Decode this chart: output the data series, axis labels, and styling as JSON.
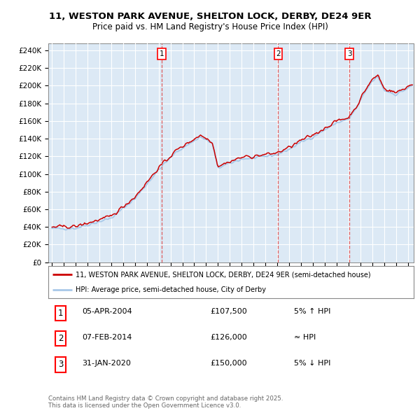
{
  "title_line1": "11, WESTON PARK AVENUE, SHELTON LOCK, DERBY, DE24 9ER",
  "title_line2": "Price paid vs. HM Land Registry's House Price Index (HPI)",
  "ylabel_ticks": [
    "£0",
    "£20K",
    "£40K",
    "£60K",
    "£80K",
    "£100K",
    "£120K",
    "£140K",
    "£160K",
    "£180K",
    "£200K",
    "£220K",
    "£240K"
  ],
  "ytick_values": [
    0,
    20000,
    40000,
    60000,
    80000,
    100000,
    120000,
    140000,
    160000,
    180000,
    200000,
    220000,
    240000
  ],
  "ylim": [
    0,
    248000
  ],
  "xlim_start": 1994.7,
  "xlim_end": 2025.5,
  "background_color": "#dce9f5",
  "grid_color": "#ffffff",
  "hpi_color": "#a8c8e8",
  "price_color": "#cc0000",
  "vline_color": "#dd4444",
  "sale1_x": 2004.25,
  "sale2_x": 2014.08,
  "sale3_x": 2020.07,
  "legend_label1": "11, WESTON PARK AVENUE, SHELTON LOCK, DERBY, DE24 9ER (semi-detached house)",
  "legend_label2": "HPI: Average price, semi-detached house, City of Derby",
  "table_row1": [
    "1",
    "05-APR-2004",
    "£107,500",
    "5% ↑ HPI"
  ],
  "table_row2": [
    "2",
    "07-FEB-2014",
    "£126,000",
    "≈ HPI"
  ],
  "table_row3": [
    "3",
    "31-JAN-2020",
    "£150,000",
    "5% ↓ HPI"
  ],
  "footer": "Contains HM Land Registry data © Crown copyright and database right 2025.\nThis data is licensed under the Open Government Licence v3.0."
}
